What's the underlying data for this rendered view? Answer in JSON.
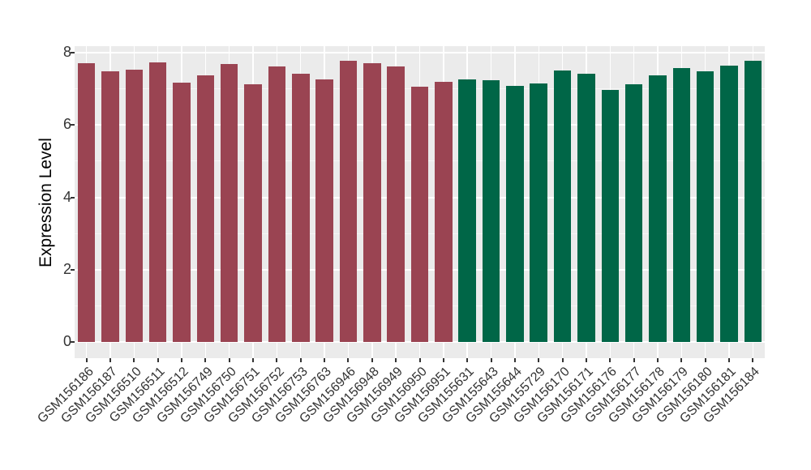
{
  "figure": {
    "background": "#FFFFFF",
    "panel_background": "#EBEBEB",
    "gridline_color": "#FFFFFF",
    "axis_text_color": "#333333"
  },
  "chart_data": {
    "type": "bar",
    "title": "",
    "xlabel": "",
    "ylabel": "Expression Level",
    "ylim": [
      0,
      8.19
    ],
    "yticks": [
      0,
      2,
      4,
      6,
      8
    ],
    "minor_yticks": [
      1,
      3,
      5,
      7
    ],
    "grid": true,
    "legend": "none",
    "x_tick_rotation_deg": 45,
    "group_colors": {
      "maroon": "#9A4452",
      "green": "#006647"
    },
    "categories": [
      "GSM156186",
      "GSM156187",
      "GSM156510",
      "GSM156511",
      "GSM156512",
      "GSM156749",
      "GSM156750",
      "GSM156751",
      "GSM156752",
      "GSM156753",
      "GSM156763",
      "GSM156946",
      "GSM156948",
      "GSM156949",
      "GSM156950",
      "GSM156951",
      "GSM155631",
      "GSM155643",
      "GSM155644",
      "GSM155729",
      "GSM156170",
      "GSM156171",
      "GSM156176",
      "GSM156177",
      "GSM156178",
      "GSM156179",
      "GSM156180",
      "GSM156181",
      "GSM156184"
    ],
    "values": [
      7.7,
      7.48,
      7.53,
      7.72,
      7.18,
      7.37,
      7.69,
      7.12,
      7.61,
      7.42,
      7.25,
      7.78,
      7.7,
      7.62,
      7.07,
      7.2,
      7.27,
      7.23,
      7.09,
      7.14,
      7.5,
      7.41,
      6.98,
      7.12,
      7.38,
      7.58,
      7.49,
      7.65,
      7.78
    ],
    "groups": [
      "maroon",
      "maroon",
      "maroon",
      "maroon",
      "maroon",
      "maroon",
      "maroon",
      "maroon",
      "maroon",
      "maroon",
      "maroon",
      "maroon",
      "maroon",
      "maroon",
      "maroon",
      "maroon",
      "green",
      "green",
      "green",
      "green",
      "green",
      "green",
      "green",
      "green",
      "green",
      "green",
      "green",
      "green",
      "green"
    ]
  }
}
